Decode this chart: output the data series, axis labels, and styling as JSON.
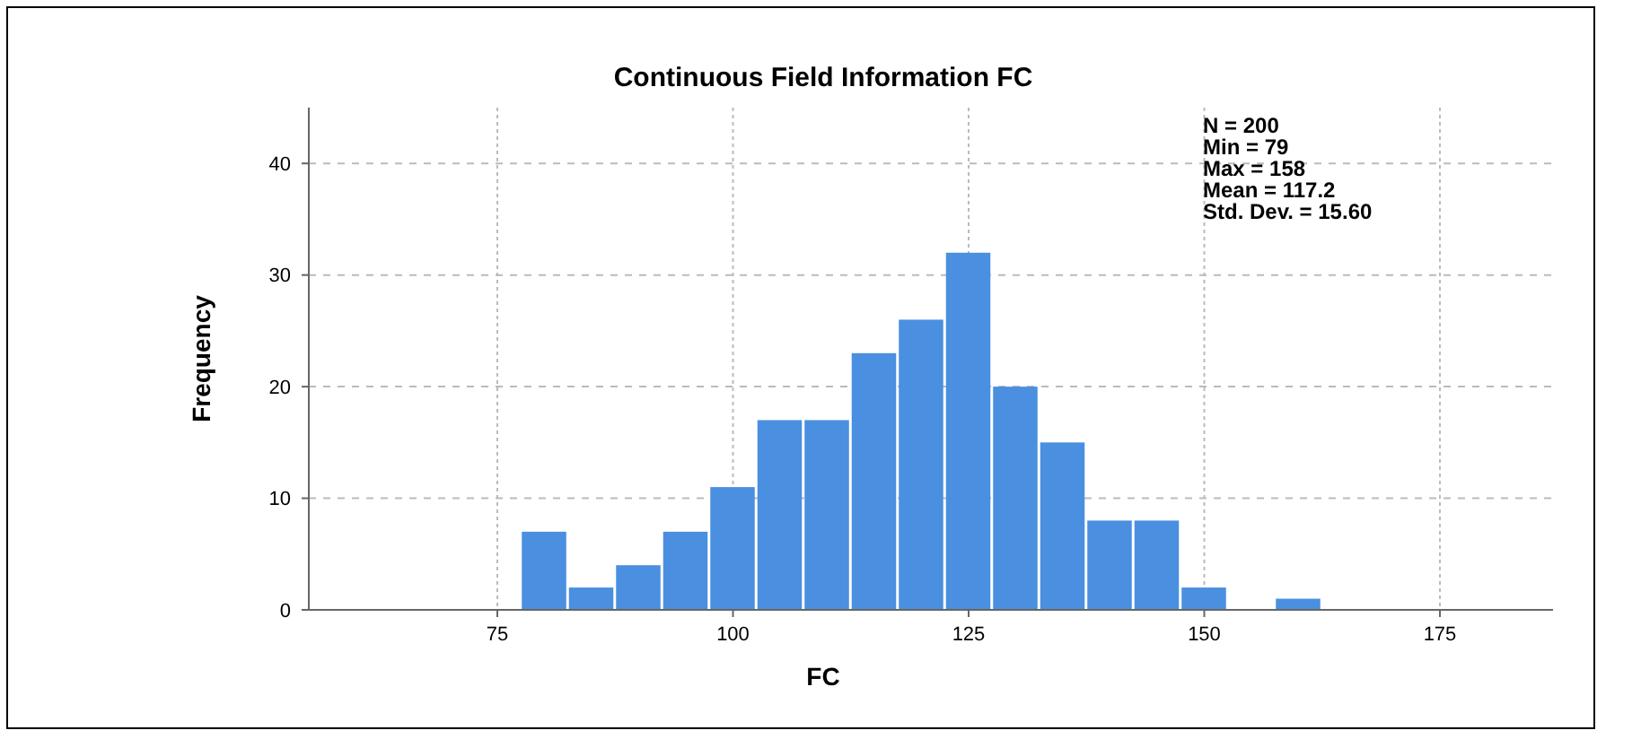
{
  "chart_data": {
    "type": "histogram",
    "title": "Continuous Field Information FC",
    "xlabel": "FC",
    "ylabel": "Frequency",
    "bins": [
      77.5,
      82.5,
      87.5,
      92.5,
      97.5,
      102.5,
      107.5,
      112.5,
      117.5,
      122.5,
      127.5,
      132.5,
      137.5,
      142.5,
      147.5,
      152.5,
      157.5,
      162.5
    ],
    "values": [
      7,
      2,
      4,
      7,
      11,
      17,
      17,
      23,
      26,
      32,
      20,
      15,
      8,
      8,
      2,
      0,
      1
    ],
    "color": "#4a8fe0",
    "xlim": [
      55,
      187
    ],
    "xticks": [
      75,
      100,
      125,
      150,
      175
    ],
    "ylim": [
      0,
      45
    ],
    "yticks": [
      0,
      10,
      20,
      30,
      40
    ],
    "grid": true,
    "annotations": [
      "N = 200\nMin = 79\nMax = 158\nMean = 117.2\nStd. Dev. = 15.60"
    ]
  }
}
